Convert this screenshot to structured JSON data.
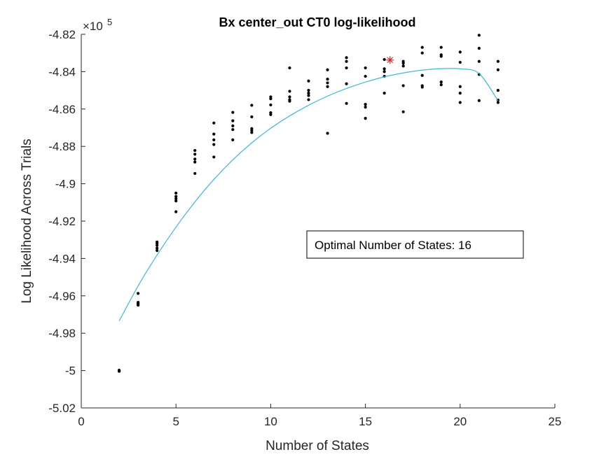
{
  "chart_data": {
    "type": "scatter",
    "title": "Bx center_out CT0 log-likelihood",
    "xlabel": "Number of States",
    "ylabel": "Log Likelihood Across Trials",
    "y_exponent_label": "×10",
    "y_exponent_power": "5",
    "xlim": [
      0,
      25
    ],
    "ylim": [
      -5.02,
      -4.82
    ],
    "xticks": [
      0,
      5,
      10,
      15,
      20,
      25
    ],
    "xtick_labels": [
      "0",
      "5",
      "10",
      "15",
      "20",
      "25"
    ],
    "yticks": [
      -5.02,
      -5.0,
      -4.98,
      -4.96,
      -4.94,
      -4.92,
      -4.9,
      -4.88,
      -4.86,
      -4.84,
      -4.82
    ],
    "ytick_labels": [
      "-5.02",
      "-5",
      "-4.98",
      "-4.96",
      "-4.94",
      "-4.92",
      "-4.9",
      "-4.88",
      "-4.86",
      "-4.84",
      "-4.82"
    ],
    "grid": false,
    "points": [
      {
        "x": 2,
        "y": [
          -4.9998,
          -5.0002,
          -5.0003,
          -5.0004
        ]
      },
      {
        "x": 3,
        "y": [
          -4.9587,
          -4.9635,
          -4.964,
          -4.9645,
          -4.965
        ]
      },
      {
        "x": 4,
        "y": [
          -4.9312,
          -4.932,
          -4.933,
          -4.9345,
          -4.9358
        ]
      },
      {
        "x": 5,
        "y": [
          -4.905,
          -4.9068,
          -4.908,
          -4.9092,
          -4.915
        ]
      },
      {
        "x": 6,
        "y": [
          -4.8822,
          -4.8842,
          -4.8868,
          -4.8884,
          -4.8945
        ]
      },
      {
        "x": 7,
        "y": [
          -4.8675,
          -4.8734,
          -4.8765,
          -4.879,
          -4.8857
        ]
      },
      {
        "x": 8,
        "y": [
          -4.8618,
          -4.8663,
          -4.869,
          -4.871,
          -4.8765
        ]
      },
      {
        "x": 9,
        "y": [
          -4.858,
          -4.8642,
          -4.8705,
          -4.8715,
          -4.8726
        ]
      },
      {
        "x": 10,
        "y": [
          -4.8535,
          -4.8545,
          -4.8578,
          -4.862,
          -4.863
        ]
      },
      {
        "x": 11,
        "y": [
          -4.838,
          -4.8505,
          -4.8535,
          -4.855,
          -4.8558
        ]
      },
      {
        "x": 12,
        "y": [
          -4.845,
          -4.85,
          -4.8515,
          -4.8528,
          -4.855
        ]
      },
      {
        "x": 13,
        "y": [
          -4.839,
          -4.844,
          -4.846,
          -4.848,
          -4.873
        ]
      },
      {
        "x": 14,
        "y": [
          -4.8325,
          -4.8345,
          -4.838,
          -4.8465,
          -4.857
        ]
      },
      {
        "x": 15,
        "y": [
          -4.838,
          -4.8425,
          -4.8575,
          -4.859,
          -4.865
        ]
      },
      {
        "x": 16,
        "y": [
          -4.8335,
          -4.8385,
          -4.84,
          -4.8425,
          -4.8515
        ]
      },
      {
        "x": 17,
        "y": [
          -4.8345,
          -4.8355,
          -4.837,
          -4.8475,
          -4.8615
        ]
      },
      {
        "x": 18,
        "y": [
          -4.827,
          -4.83,
          -4.842,
          -4.8475,
          -4.8483
        ]
      },
      {
        "x": 19,
        "y": [
          -4.827,
          -4.831,
          -4.8318,
          -4.8455,
          -4.847
        ]
      },
      {
        "x": 20,
        "y": [
          -4.8295,
          -4.835,
          -4.848,
          -4.8515,
          -4.8565
        ]
      },
      {
        "x": 21,
        "y": [
          -4.8205,
          -4.8275,
          -4.8345,
          -4.8415,
          -4.8555
        ]
      },
      {
        "x": 22,
        "y": [
          -4.8345,
          -4.839,
          -4.85,
          -4.8552,
          -4.8565
        ]
      }
    ],
    "fit_curve": {
      "color": "#3fb8e0",
      "x_range": [
        2,
        22
      ],
      "samples": [
        {
          "x": 2,
          "y": -4.9735
        },
        {
          "x": 3,
          "y": -4.9547
        },
        {
          "x": 4,
          "y": -4.9382
        },
        {
          "x": 5,
          "y": -4.9232
        },
        {
          "x": 6,
          "y": -4.9097
        },
        {
          "x": 7,
          "y": -4.8977
        },
        {
          "x": 8,
          "y": -4.8872
        },
        {
          "x": 9,
          "y": -4.8781
        },
        {
          "x": 10,
          "y": -4.8703
        },
        {
          "x": 11,
          "y": -4.8637
        },
        {
          "x": 12,
          "y": -4.858
        },
        {
          "x": 13,
          "y": -4.8531
        },
        {
          "x": 14,
          "y": -4.849
        },
        {
          "x": 15,
          "y": -4.8456
        },
        {
          "x": 16,
          "y": -4.8428
        },
        {
          "x": 17,
          "y": -4.8407
        },
        {
          "x": 18,
          "y": -4.8392
        },
        {
          "x": 19,
          "y": -4.8384
        },
        {
          "x": 20,
          "y": -4.8385
        },
        {
          "x": 21,
          "y": -4.841
        },
        {
          "x": 22,
          "y": -4.8556
        }
      ]
    },
    "optimum_marker": {
      "x": 16.3,
      "y": -4.8338,
      "color": "#d62728"
    },
    "annotation": "Optimal Number of States: 16",
    "point_color": "#000000"
  }
}
